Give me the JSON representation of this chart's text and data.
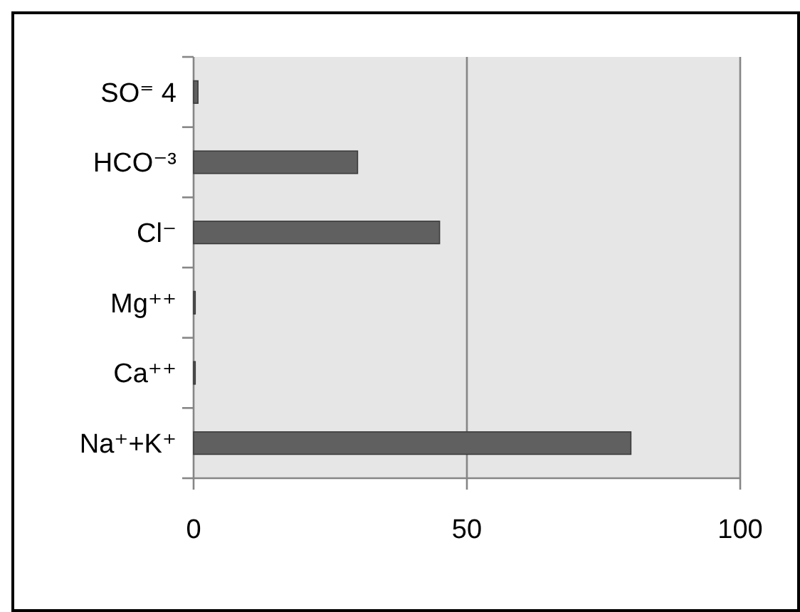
{
  "chart_data": {
    "type": "bar",
    "orientation": "horizontal",
    "categories": [
      "SO⁼ 4",
      "HCO⁻³",
      "Cl⁻",
      "Mg⁺⁺",
      "Ca⁺⁺",
      "Na⁺+K⁺"
    ],
    "values": [
      0.8,
      30,
      45,
      0.3,
      0.3,
      80
    ],
    "color": "#606060",
    "xlim": [
      0,
      100
    ],
    "xticks": [
      0,
      50,
      100
    ],
    "grid": "x"
  }
}
